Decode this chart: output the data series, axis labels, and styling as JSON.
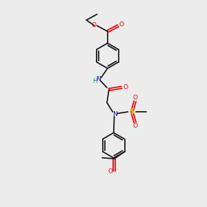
{
  "background_color": "#ececec",
  "bond_color": "#1a1a1a",
  "atom_colors": {
    "O": "#ff0000",
    "N": "#0000cc",
    "H": "#008080",
    "S": "#cccc00",
    "C": "#1a1a1a"
  },
  "figsize": [
    3.0,
    3.0
  ],
  "dpi": 100
}
